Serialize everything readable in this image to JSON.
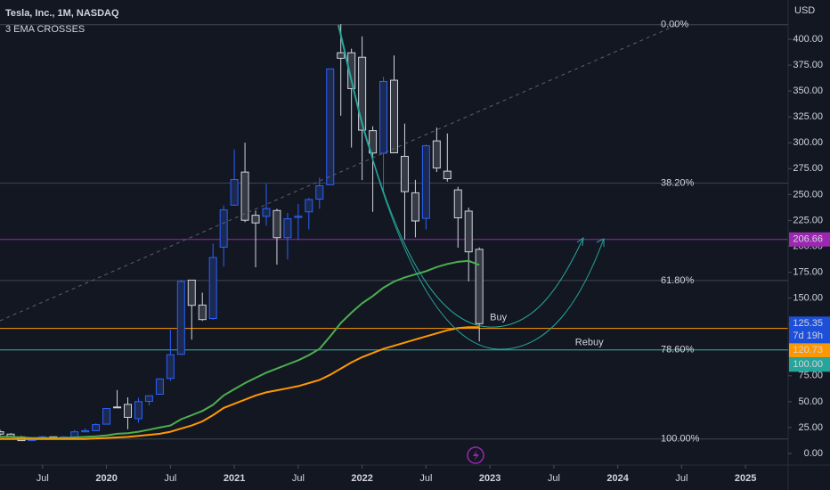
{
  "chart_data": {
    "type": "candlestick",
    "title": "Tesla, Inc., 1M, NASDAQ",
    "subtitle": "3 EMA CROSSES",
    "y_axis_label": "USD",
    "categories": [
      "2019-03",
      "2019-04",
      "2019-05",
      "2019-06",
      "2019-07",
      "2019-08",
      "2019-09",
      "2019-10",
      "2019-11",
      "2019-12",
      "2020-01",
      "2020-02",
      "2020-03",
      "2020-04",
      "2020-05",
      "2020-06",
      "2020-07",
      "2020-08",
      "2020-09",
      "2020-10",
      "2020-11",
      "2020-12",
      "2021-01",
      "2021-02",
      "2021-03",
      "2021-04",
      "2021-05",
      "2021-06",
      "2021-07",
      "2021-08",
      "2021-09",
      "2021-10",
      "2021-11",
      "2021-12",
      "2022-01",
      "2022-02",
      "2022-03",
      "2022-04",
      "2022-05",
      "2022-06",
      "2022-07",
      "2022-08",
      "2022-09",
      "2022-10",
      "2022-11",
      "2022-12"
    ],
    "open": [
      21.0,
      18.7,
      16.0,
      12.4,
      14.9,
      16.1,
      15.0,
      16.0,
      20.9,
      22.0,
      28.3,
      44.9,
      47.4,
      33.6,
      50.3,
      57.2,
      72.5,
      95.7,
      167.4,
      143.3,
      130.3,
      199.2,
      239.8,
      271.7,
      230.0,
      229.0,
      234.6,
      208.4,
      227.9,
      233.3,
      245.6,
      259.5,
      386.9,
      386.9,
      382.6,
      311.7,
      289.9,
      360.4,
      286.9,
      251.7,
      227.0,
      301.8,
      272.6,
      254.5,
      234.0,
      197.1
    ],
    "high": [
      23.0,
      19.7,
      17.0,
      15.2,
      17.2,
      16.3,
      16.7,
      22.7,
      24.1,
      29.0,
      43.9,
      61.2,
      54.2,
      53.8,
      56.0,
      72.5,
      119.7,
      167.5,
      167.5,
      155.3,
      202.6,
      239.6,
      293.5,
      300.1,
      234.5,
      260.3,
      236.3,
      232.3,
      240.7,
      246.8,
      266.3,
      371.7,
      414.5,
      390.9,
      402.7,
      315.9,
      363.7,
      384.3,
      318.5,
      264.2,
      298.3,
      314.7,
      309.0,
      257.5,
      237.4,
      198.9
    ],
    "low": [
      17.0,
      15.9,
      12.4,
      11.8,
      14.6,
      14.1,
      14.5,
      15.2,
      20.5,
      21.8,
      28.1,
      44.0,
      23.4,
      29.8,
      46.4,
      57.0,
      70.1,
      95.1,
      109.9,
      128.0,
      129.2,
      180.4,
      239.1,
      223.3,
      179.8,
      219.8,
      182.3,
      187.3,
      206.1,
      216.3,
      236.2,
      259.0,
      326.1,
      295.4,
      264.0,
      233.3,
      252.0,
      290.3,
      206.9,
      208.7,
      216.2,
      271.8,
      262.5,
      198.6,
      166.2,
      108.2
    ],
    "close": [
      18.7,
      16.0,
      12.4,
      14.9,
      16.1,
      15.0,
      16.0,
      20.9,
      22.0,
      27.9,
      43.4,
      44.5,
      34.9,
      50.1,
      55.7,
      72.0,
      95.4,
      166.1,
      143.0,
      129.3,
      189.2,
      235.2,
      264.5,
      225.2,
      222.6,
      236.5,
      208.4,
      226.6,
      229.1,
      245.2,
      258.5,
      371.3,
      381.6,
      352.3,
      312.2,
      290.1,
      359.2,
      290.3,
      252.8,
      224.5,
      297.1,
      275.6,
      265.3,
      227.5,
      194.7,
      125.35
    ],
    "up_color": "#2962ff",
    "down_color": "#d1d4dc",
    "lines": [
      {
        "color": "#4caf50",
        "values": [
          16,
          16,
          15.5,
          15,
          15,
          15,
          15,
          15.5,
          16,
          16.5,
          17.5,
          19,
          19.5,
          21,
          23,
          25,
          27,
          33,
          37,
          41,
          47,
          56,
          62,
          68,
          73,
          78,
          82,
          86,
          90,
          95,
          101,
          113,
          126,
          136,
          145,
          152,
          160,
          166,
          170,
          173,
          176,
          180,
          183,
          185,
          186,
          182
        ]
      },
      {
        "color": "#ff9800",
        "values": [
          14,
          14,
          14,
          14,
          14,
          14,
          14,
          14,
          14,
          14.5,
          15,
          15.5,
          16,
          17,
          18,
          19,
          21,
          24,
          27,
          31,
          37,
          44,
          48,
          52,
          56,
          59,
          61,
          63,
          65,
          68,
          71,
          76,
          82,
          88,
          93,
          97,
          101,
          104,
          107,
          110,
          113,
          116,
          119,
          121,
          122,
          122
        ]
      }
    ],
    "price_lines": [
      {
        "value": 206.66,
        "color": "#9c27b0"
      },
      {
        "value": 120.73,
        "color": "#ff9800"
      },
      {
        "value": 100,
        "label": "100.00",
        "color": "#26a69a"
      }
    ],
    "last_price": 125.35,
    "last_price_color": "#1e4fd8",
    "countdown": "7d 19h",
    "fib_levels": [
      {
        "label": "0.00%",
        "value": 414
      },
      {
        "label": "38.20%",
        "value": 261
      },
      {
        "label": "61.80%",
        "value": 167
      },
      {
        "label": "78.60%",
        "value": 100
      },
      {
        "label": "100.00%",
        "value": 14
      }
    ],
    "annotations": [
      {
        "text": "Buy",
        "color": "#ff9800",
        "x": "2023-01",
        "y": 131
      },
      {
        "text": "Rebuy",
        "color": "#26a69a",
        "x": "2023-09",
        "y": 107
      }
    ],
    "xlim": [
      "2019-03",
      "2025-05"
    ],
    "ylim": [
      -9.46,
      437.85
    ],
    "xticks": [
      {
        "value": "2019-07",
        "label": "Jul"
      },
      {
        "value": "2020-01",
        "label": "2020"
      },
      {
        "value": "2020-07",
        "label": "Jul"
      },
      {
        "value": "2021-01",
        "label": "2021"
      },
      {
        "value": "2021-07",
        "label": "Jul"
      },
      {
        "value": "2022-01",
        "label": "2022"
      },
      {
        "value": "2022-07",
        "label": "Jul"
      },
      {
        "value": "2023-01",
        "label": "2023"
      },
      {
        "value": "2023-07",
        "label": "Jul"
      },
      {
        "value": "2024-01",
        "label": "2024"
      },
      {
        "value": "2024-07",
        "label": "Jul"
      },
      {
        "value": "2025-01",
        "label": "2025"
      }
    ],
    "yticks": [
      {
        "value": 0,
        "label": "0.00"
      },
      {
        "value": 25,
        "label": "25.00"
      },
      {
        "value": 50,
        "label": "50.00"
      },
      {
        "value": 75,
        "label": "75.00"
      },
      {
        "value": 100,
        "label": "100.00"
      },
      {
        "value": 125,
        "label": "125.00"
      },
      {
        "value": 150,
        "label": "150.00"
      },
      {
        "value": 175,
        "label": "175.00"
      },
      {
        "value": 200,
        "label": "200.00"
      },
      {
        "value": 225,
        "label": "225.00"
      },
      {
        "value": 250,
        "label": "250.00"
      },
      {
        "value": 275,
        "label": "275.00"
      },
      {
        "value": 300,
        "label": "300.00"
      },
      {
        "value": 325,
        "label": "325.00"
      },
      {
        "value": 350,
        "label": "350.00"
      },
      {
        "value": 375,
        "label": "375.00"
      },
      {
        "value": 400,
        "label": "400.00"
      }
    ]
  }
}
